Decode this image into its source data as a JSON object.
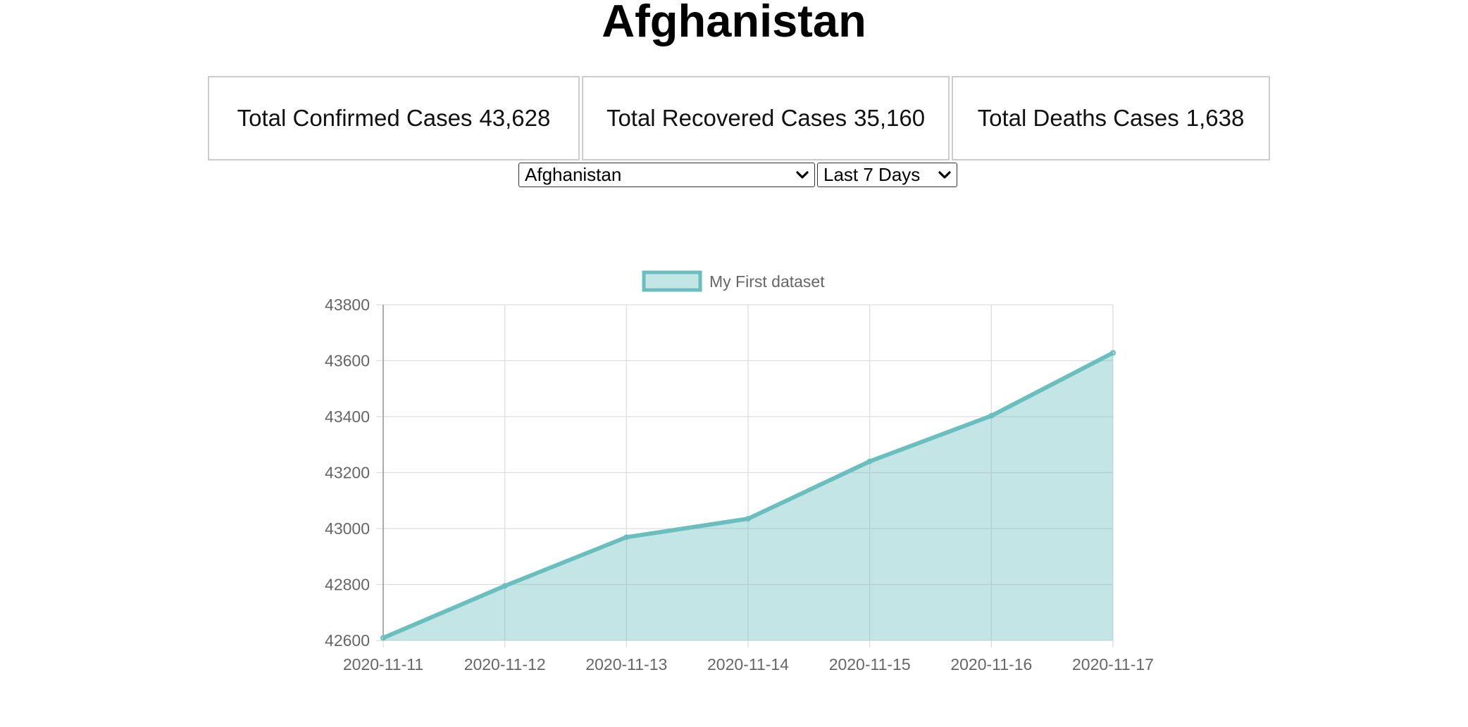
{
  "page": {
    "title": "Afghanistan"
  },
  "stats": [
    {
      "label": "Total Confirmed Cases",
      "value": "43,628"
    },
    {
      "label": "Total Recovered Cases",
      "value": "35,160"
    },
    {
      "label": "Total Deaths Cases",
      "value": "1,638"
    }
  ],
  "controls": {
    "country_selected": "Afghanistan",
    "range_selected": "Last 7 Days",
    "chevron_icon": "chevron-down-icon"
  },
  "colors": {
    "line": "#6bbebe",
    "fill": "rgba(107,190,190,0.40)",
    "grid": "#dddddd",
    "axis": "#999999",
    "text": "#666666"
  },
  "chart_data": {
    "type": "area",
    "x": [
      "2020-11-11",
      "2020-11-12",
      "2020-11-13",
      "2020-11-14",
      "2020-11-15",
      "2020-11-16",
      "2020-11-17"
    ],
    "series": [
      {
        "name": "My First dataset",
        "values": [
          42609,
          42795,
          42969,
          43035,
          43240,
          43403,
          43628
        ]
      }
    ],
    "ylim": [
      42600,
      43800
    ],
    "yticks": [
      42600,
      42800,
      43000,
      43200,
      43400,
      43600,
      43800
    ],
    "grid": true,
    "legend": "top-center",
    "title": "",
    "xlabel": "",
    "ylabel": ""
  }
}
